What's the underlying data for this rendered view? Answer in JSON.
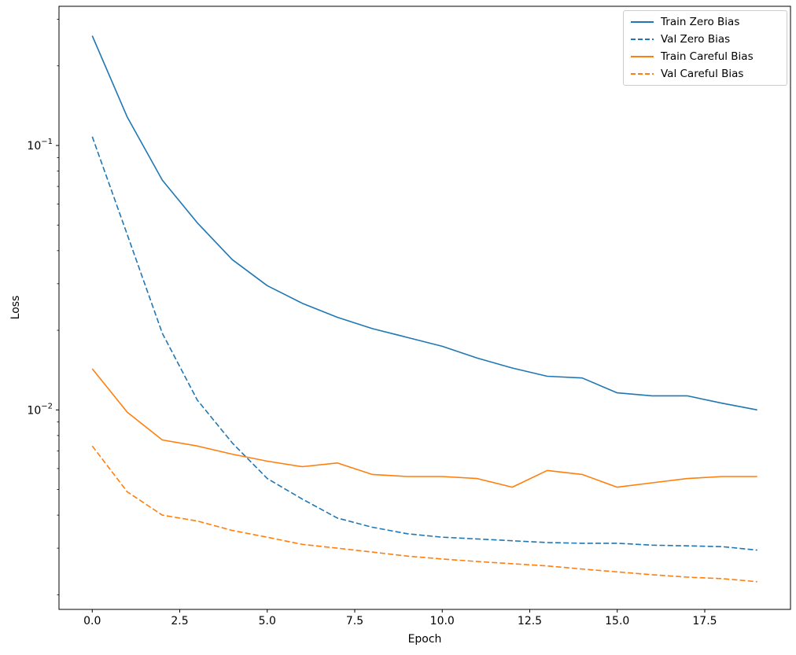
{
  "figure": {
    "background": "#ffffff"
  },
  "chart_data": {
    "type": "line",
    "title": "",
    "xlabel": "Epoch",
    "ylabel": "Loss",
    "yscale": "log",
    "grid": false,
    "xlim": [
      -0.95,
      19.95
    ],
    "ylim": [
      0.00176,
      0.336
    ],
    "x": [
      0,
      1,
      2,
      3,
      4,
      5,
      6,
      7,
      8,
      9,
      10,
      11,
      12,
      13,
      14,
      15,
      16,
      17,
      18,
      19
    ],
    "x_ticks": {
      "values": [
        0,
        2.5,
        5,
        7.5,
        10,
        12.5,
        15,
        17.5
      ],
      "labels": [
        "0.0",
        "2.5",
        "5.0",
        "7.5",
        "10.0",
        "12.5",
        "15.0",
        "17.5"
      ]
    },
    "y_ticks": {
      "values": [
        0.1,
        0.01
      ],
      "labels": [
        {
          "base": "10",
          "exp": "−1"
        },
        {
          "base": "10",
          "exp": "−2"
        }
      ]
    },
    "legend": {
      "position": "upper right",
      "entries": [
        "Train Zero Bias",
        "Val Zero Bias",
        "Train Careful Bias",
        "Val Careful Bias"
      ]
    },
    "series": [
      {
        "name": "Train Zero Bias",
        "color": "#1f77b4",
        "style": "solid",
        "values": [
          0.26,
          0.128,
          0.074,
          0.051,
          0.037,
          0.0295,
          0.0253,
          0.0224,
          0.0203,
          0.0188,
          0.0174,
          0.0157,
          0.0144,
          0.0134,
          0.0132,
          0.0116,
          0.0113,
          0.0113,
          0.0106,
          0.01
        ]
      },
      {
        "name": "Val Zero Bias",
        "color": "#1f77b4",
        "style": "dashed",
        "values": [
          0.108,
          0.046,
          0.0195,
          0.0109,
          0.0075,
          0.0055,
          0.0046,
          0.0039,
          0.0036,
          0.0034,
          0.0033,
          0.00325,
          0.0032,
          0.00315,
          0.00313,
          0.00313,
          0.00308,
          0.00306,
          0.00304,
          0.00295
        ]
      },
      {
        "name": "Train Careful Bias",
        "color": "#ff7f0e",
        "style": "solid",
        "values": [
          0.0143,
          0.0098,
          0.0077,
          0.0073,
          0.0068,
          0.0064,
          0.0061,
          0.0063,
          0.0057,
          0.0056,
          0.0056,
          0.0055,
          0.0051,
          0.0059,
          0.0057,
          0.0051,
          0.0053,
          0.0055,
          0.0056,
          0.0056
        ]
      },
      {
        "name": "Val Careful Bias",
        "color": "#ff7f0e",
        "style": "dashed",
        "values": [
          0.0073,
          0.0049,
          0.004,
          0.0038,
          0.0035,
          0.0033,
          0.0031,
          0.003,
          0.0029,
          0.0028,
          0.00273,
          0.00267,
          0.00262,
          0.00257,
          0.0025,
          0.00244,
          0.00238,
          0.00233,
          0.0023,
          0.00224
        ]
      }
    ]
  }
}
